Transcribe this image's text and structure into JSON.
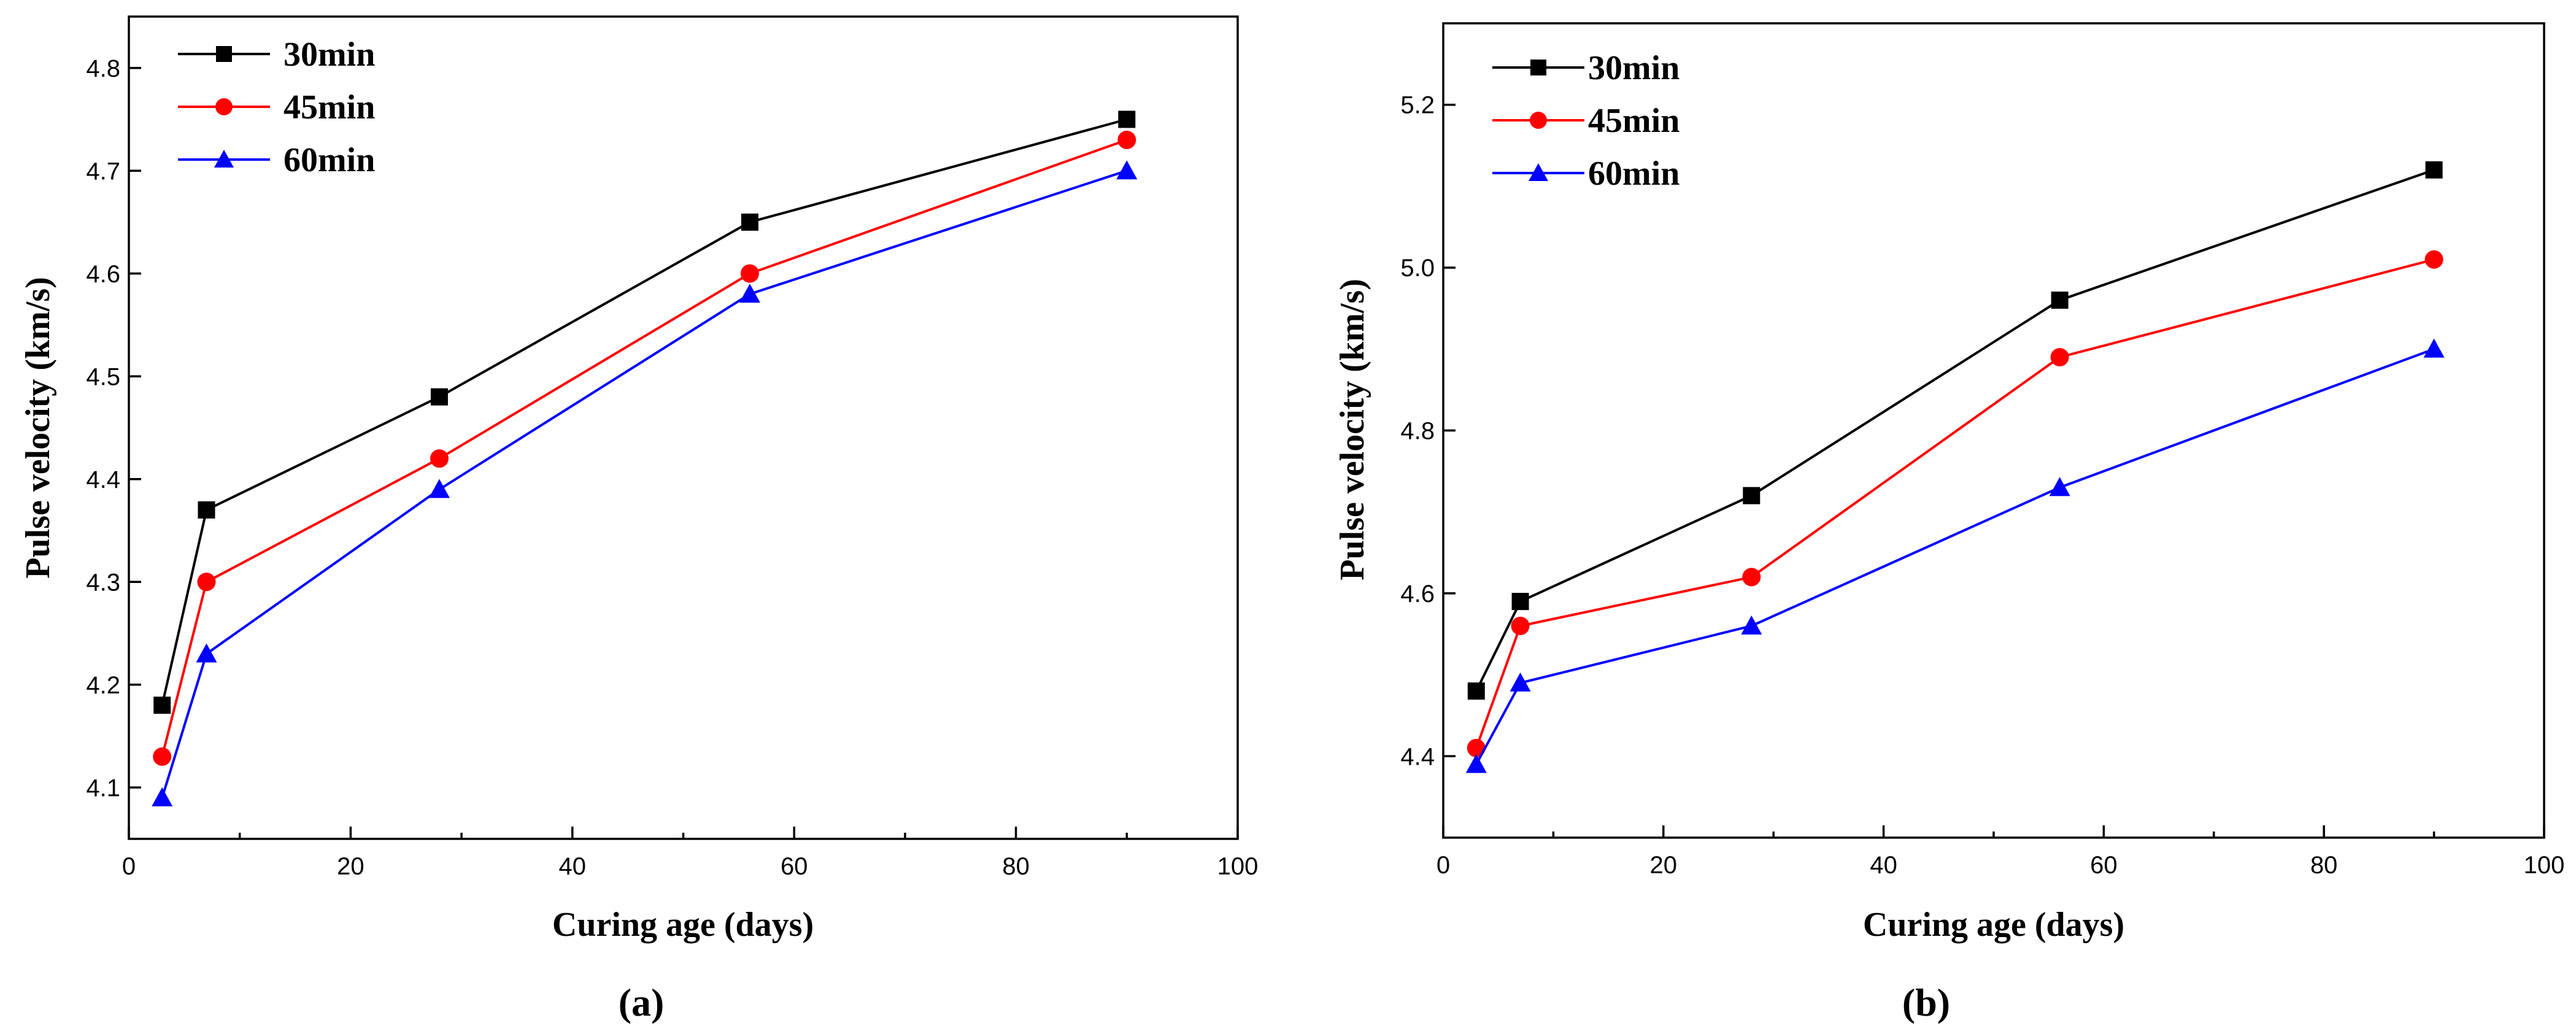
{
  "chart_data": [
    {
      "type": "line",
      "panel": "a",
      "caption": "(a)",
      "xlabel": "Curing age (days)",
      "ylabel": "Pulse velocity (km/s)",
      "xlim": [
        0,
        100
      ],
      "ylim": [
        4.05,
        4.85
      ],
      "xticks": [
        "0",
        "20",
        "40",
        "60",
        "80",
        "100"
      ],
      "yticks": [
        "4.1",
        "4.2",
        "4.3",
        "4.4",
        "4.5",
        "4.6",
        "4.7",
        "4.8"
      ],
      "legend_position": "top-left",
      "x": [
        3,
        7,
        28,
        56,
        90
      ],
      "series": [
        {
          "name": "30min",
          "color": "#000000",
          "marker": "square",
          "values": [
            4.18,
            4.37,
            4.48,
            4.65,
            4.75
          ]
        },
        {
          "name": "45min",
          "color": "#ff0000",
          "marker": "circle",
          "values": [
            4.13,
            4.3,
            4.42,
            4.6,
            4.73
          ]
        },
        {
          "name": "60min",
          "color": "#0000ff",
          "marker": "triangle",
          "values": [
            4.09,
            4.23,
            4.39,
            4.58,
            4.7
          ]
        }
      ]
    },
    {
      "type": "line",
      "panel": "b",
      "caption": "(b)",
      "xlabel": "Curing age (days)",
      "ylabel": "Pulse velocity (km/s)",
      "xlim": [
        0,
        100
      ],
      "ylim": [
        4.3,
        5.3
      ],
      "xticks": [
        "0",
        "20",
        "40",
        "60",
        "80",
        "100"
      ],
      "yticks": [
        "4.4",
        "4.6",
        "4.8",
        "5.0",
        "5.2"
      ],
      "legend_position": "top-left",
      "x": [
        3,
        7,
        28,
        56,
        90
      ],
      "series": [
        {
          "name": "30min",
          "color": "#000000",
          "marker": "square",
          "values": [
            4.48,
            4.59,
            4.72,
            4.96,
            5.12
          ]
        },
        {
          "name": "45min",
          "color": "#ff0000",
          "marker": "circle",
          "values": [
            4.41,
            4.56,
            4.62,
            4.89,
            5.01
          ]
        },
        {
          "name": "60min",
          "color": "#0000ff",
          "marker": "triangle",
          "values": [
            4.39,
            4.49,
            4.56,
            4.73,
            4.9
          ]
        }
      ]
    }
  ]
}
